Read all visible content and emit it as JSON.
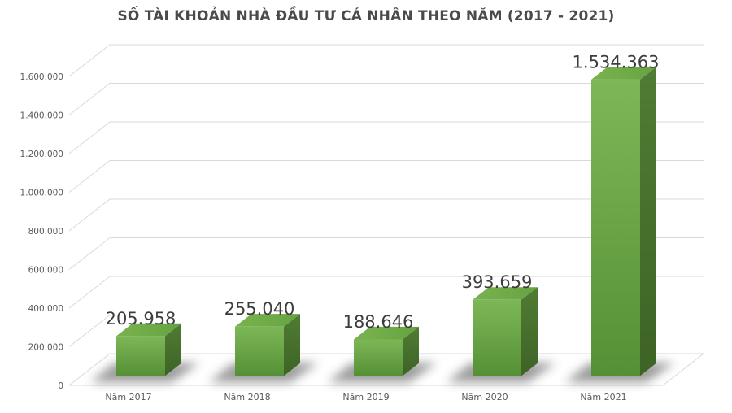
{
  "chart_data": {
    "type": "bar",
    "style": "3d-column",
    "title": "SỐ TÀI KHOẢN NHÀ ĐẦU TƯ CÁ NHÂN THEO NĂM (2017 - 2021)",
    "categories": [
      "Năm 2017",
      "Năm 2018",
      "Năm 2019",
      "Năm 2020",
      "Năm 2021"
    ],
    "values": [
      205958,
      255040,
      188646,
      393659,
      1534363
    ],
    "value_labels": [
      "205.958",
      "255.040",
      "188.646",
      "393.659",
      "1.534.363"
    ],
    "xlabel": "",
    "ylabel": "",
    "ylim": [
      0,
      1600000
    ],
    "y_tick_values": [
      0,
      200000,
      400000,
      600000,
      800000,
      1000000,
      1200000,
      1400000,
      1600000
    ],
    "y_tick_labels": [
      "0",
      "200.000",
      "400.000",
      "600.000",
      "800.000",
      "1.000.000",
      "1.200.000",
      "1.400.000",
      "1.600.000"
    ],
    "grid": true,
    "legend": "none",
    "colors": {
      "bar_front_top": "#7cb757",
      "bar_front_bottom": "#569036",
      "bar_side_top": "#507c34",
      "bar_side_bottom": "#3d6325",
      "bar_top_left": "#79b350",
      "bar_top_right": "#66a340",
      "shadow": "#3a3a3a",
      "gridline": "#d9d9d9",
      "title_text": "#4a4a4a",
      "value_label_text": "#3d3d3d",
      "axis_label_text": "#595959",
      "frame_border": "#d9d9d9",
      "background": "#ffffff"
    }
  }
}
